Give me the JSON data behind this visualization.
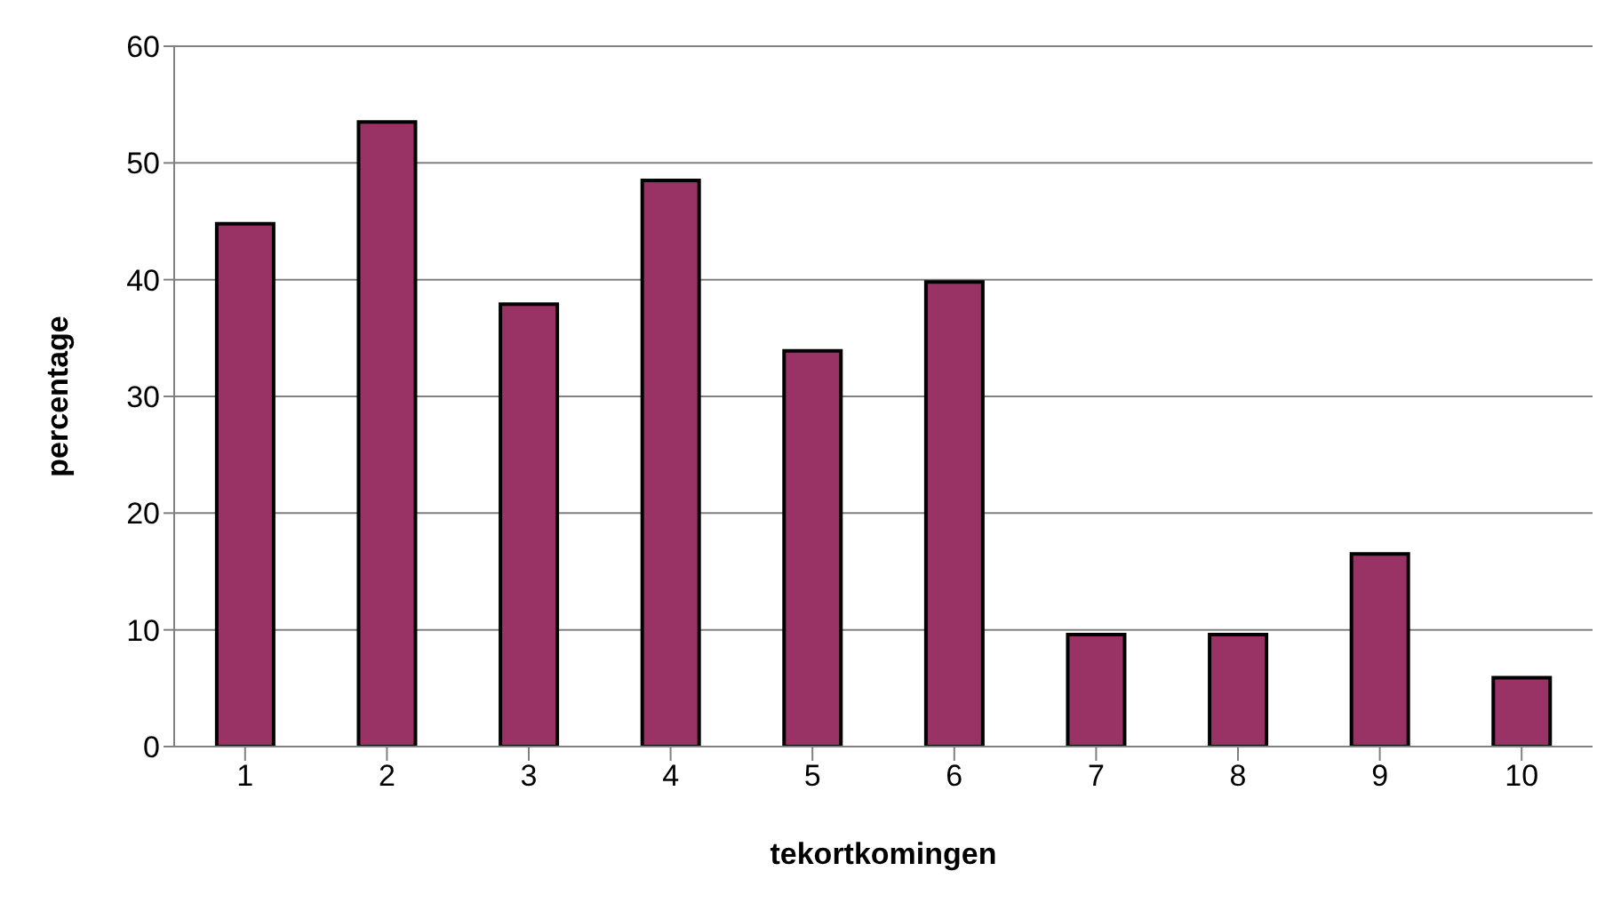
{
  "chart_data": {
    "type": "bar",
    "xlabel": "tekortkomingen",
    "ylabel": "percentage",
    "categories": [
      "1",
      "2",
      "3",
      "4",
      "5",
      "6",
      "7",
      "8",
      "9",
      "10"
    ],
    "values": [
      44.8,
      53.5,
      37.9,
      48.5,
      33.9,
      39.8,
      9.6,
      9.6,
      16.5,
      5.9
    ],
    "color": "#993366",
    "ylim": [
      0,
      60
    ],
    "yticks": [
      0,
      10,
      20,
      30,
      40,
      50,
      60
    ],
    "grid": "y",
    "legend": false
  }
}
